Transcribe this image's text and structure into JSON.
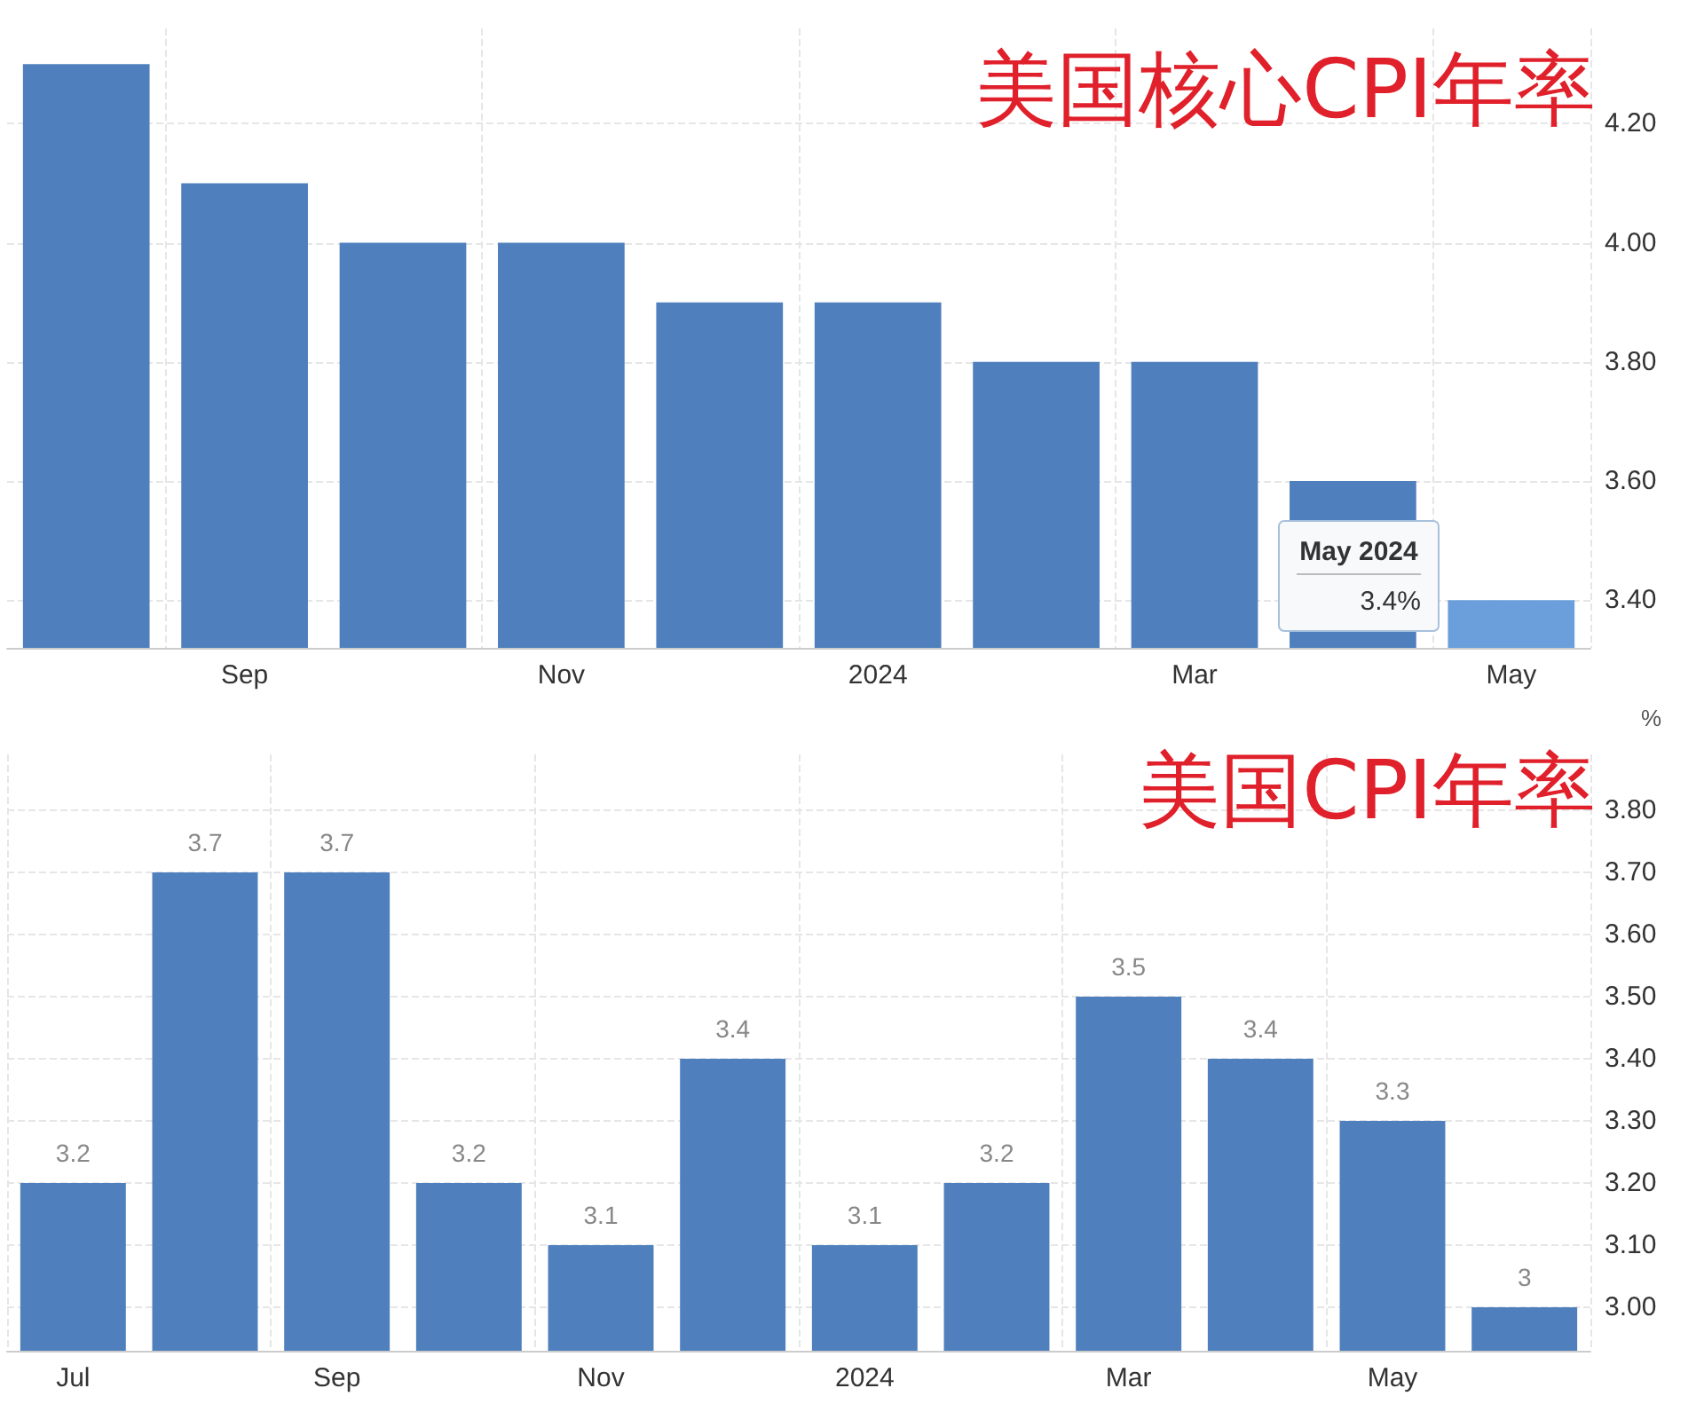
{
  "chart_data": [
    {
      "type": "bar",
      "title": "美国核心CPI年率",
      "categories": [
        null,
        "Sep",
        null,
        "Nov",
        null,
        "2024",
        null,
        "Mar",
        null,
        "May"
      ],
      "values": [
        4.3,
        4.1,
        4.0,
        4.0,
        3.9,
        3.9,
        3.8,
        3.8,
        3.6,
        3.4
      ],
      "colors": [
        "#4f80bd",
        "#4f80bd",
        "#4f80bd",
        "#4f80bd",
        "#4f80bd",
        "#4f80bd",
        "#4f80bd",
        "#4f80bd",
        "#4f80bd",
        "#6a9fdc"
      ],
      "ylim": [
        3.32,
        4.36
      ],
      "yticks": [
        {
          "value": 3.4,
          "label": "3.40"
        },
        {
          "value": 3.6,
          "label": "3.60"
        },
        {
          "value": 3.8,
          "label": "3.80"
        },
        {
          "value": 4.0,
          "label": "4.00"
        },
        {
          "value": 4.2,
          "label": "4.20"
        }
      ],
      "grid": true,
      "annotations": [
        "May 2024",
        "3.4%"
      ]
    },
    {
      "type": "bar",
      "title": "美国CPI年率",
      "ylabel": "%",
      "categories": [
        "Jul",
        null,
        "Sep",
        null,
        "Nov",
        null,
        "2024",
        null,
        "Mar",
        null,
        "May",
        null
      ],
      "values": [
        3.2,
        3.7,
        3.7,
        3.2,
        3.1,
        3.4,
        3.1,
        3.2,
        3.5,
        3.4,
        3.3,
        3
      ],
      "color": "#4f80bd",
      "ylim": [
        2.93,
        3.89
      ],
      "yticks": [
        {
          "value": 3.0,
          "label": "3.00"
        },
        {
          "value": 3.1,
          "label": "3.10"
        },
        {
          "value": 3.2,
          "label": "3.20"
        },
        {
          "value": 3.3,
          "label": "3.30"
        },
        {
          "value": 3.4,
          "label": "3.40"
        },
        {
          "value": 3.5,
          "label": "3.50"
        },
        {
          "value": 3.6,
          "label": "3.60"
        },
        {
          "value": 3.7,
          "label": "3.70"
        },
        {
          "value": 3.8,
          "label": "3.80"
        }
      ],
      "grid": true,
      "data_labels": true
    }
  ]
}
